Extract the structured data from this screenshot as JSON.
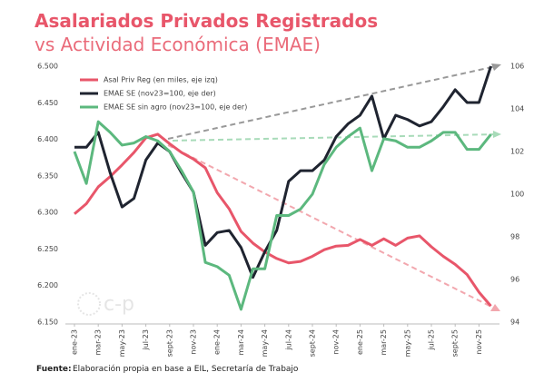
{
  "chart_data": {
    "type": "line",
    "title": "Asalariados Privados Registrados",
    "subtitle": "vs Actividad Económica (EMAE)",
    "categories": [
      "ene-23",
      null,
      "mar-23",
      null,
      "may-23",
      null,
      "jul-23",
      null,
      "sept-23",
      null,
      "nov-23",
      null,
      "ene-24",
      null,
      "mar-24",
      null,
      "may-24",
      null,
      "jul-24",
      null,
      "sept-24",
      null,
      "nov-24",
      null,
      "ene-25",
      null,
      "mar-25",
      null,
      "may-25",
      null,
      "jul-25",
      null,
      "sept-25",
      null,
      "nov-25",
      null
    ],
    "series": [
      {
        "name": "Asal Priv Reg (en miles, eje izq)",
        "color": "#e8566a",
        "axis": "y",
        "values": [
          6298,
          6312,
          6335,
          6349,
          6365,
          6382,
          6402,
          6407,
          6394,
          6382,
          6373,
          6361,
          6327,
          6305,
          6274,
          6258,
          6246,
          6237,
          6231,
          6233,
          6240,
          6249,
          6254,
          6255,
          6263,
          6255,
          6264,
          6255,
          6265,
          6268,
          6253,
          6240,
          6229,
          6215,
          6191,
          6172
        ]
      },
      {
        "name": "EMAE SE (nov23=100, eje der)",
        "color": "#1f2430",
        "axis": "y2",
        "values": [
          102.2,
          102.2,
          102.9,
          101.0,
          99.4,
          99.8,
          101.6,
          102.4,
          102.0,
          101.0,
          100.1,
          97.6,
          98.2,
          98.3,
          97.5,
          96.1,
          97.3,
          98.3,
          100.6,
          101.1,
          101.1,
          101.6,
          102.7,
          103.3,
          103.7,
          104.6,
          102.6,
          103.7,
          103.5,
          103.2,
          103.4,
          104.1,
          104.9,
          104.3,
          104.3,
          106.0
        ]
      },
      {
        "name": "EMAE SE sin agro (nov23=100, eje der)",
        "color": "#5cb87e",
        "axis": "y2",
        "values": [
          102.0,
          100.5,
          103.4,
          102.9,
          102.3,
          102.4,
          102.7,
          102.5,
          102.0,
          101.1,
          100.1,
          96.8,
          96.6,
          96.2,
          94.6,
          96.5,
          96.5,
          99.0,
          99.0,
          99.3,
          100.0,
          101.4,
          102.2,
          102.7,
          103.1,
          101.1,
          102.6,
          102.5,
          102.2,
          102.2,
          102.5,
          102.9,
          102.9,
          102.1,
          102.1,
          102.8
        ]
      }
    ],
    "ylim": [
      6150,
      6500
    ],
    "yticks": [
      {
        "value": 6150,
        "label": "6.150"
      },
      {
        "value": 6200,
        "label": "6.200"
      },
      {
        "value": 6250,
        "label": "6.250"
      },
      {
        "value": 6300,
        "label": "6.300"
      },
      {
        "value": 6350,
        "label": "6.350"
      },
      {
        "value": 6400,
        "label": "6.400"
      },
      {
        "value": 6450,
        "label": "6.450"
      },
      {
        "value": 6500,
        "label": "6.500"
      }
    ],
    "y2lim": [
      94,
      106
    ],
    "y2ticks": [
      94,
      96,
      98,
      100,
      102,
      104,
      106
    ],
    "watermark": "c-p",
    "source_label": "Fuente:",
    "source": "Elaboración propia en base a EIL, Secretaría de Trabajo"
  }
}
